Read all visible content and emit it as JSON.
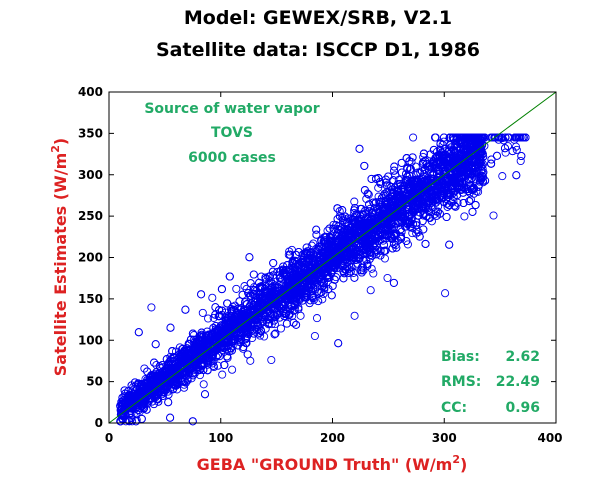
{
  "chart_data": {
    "type": "scatter",
    "title_line1": "Model: GEWEX/SRB, V2.1",
    "title_line2": "Satellite data: ISCCP D1, 1986",
    "xlabel": "GEBA \"GROUND Truth\" (W/m",
    "xlabel_sup": "2",
    "xlabel_close": ")",
    "ylabel": "Satellite Estimates (W/m",
    "ylabel_sup": "2",
    "ylabel_close": ")",
    "xlim": [
      0,
      400
    ],
    "ylim": [
      0,
      400
    ],
    "xticks": [
      0,
      100,
      200,
      300,
      400
    ],
    "yticks": [
      0,
      50,
      100,
      150,
      200,
      250,
      300,
      350,
      400
    ],
    "grid": false,
    "annotation_top": [
      "Source of water vapor",
      "TOVS",
      "6000 cases"
    ],
    "stats": [
      {
        "label": "Bias:",
        "value": "2.62"
      },
      {
        "label": "RMS:",
        "value": "22.49"
      },
      {
        "label": "CC:",
        "value": "0.96"
      }
    ],
    "n_points": 6000,
    "fit_line": {
      "x": [
        0,
        400
      ],
      "y": [
        0,
        400
      ]
    },
    "point_color": "#0000ee",
    "line_color": "#008000",
    "label_color": "#dd2222",
    "annot_color": "#22aa66"
  }
}
